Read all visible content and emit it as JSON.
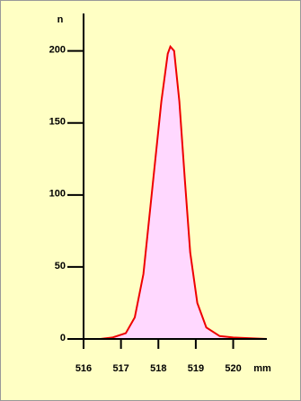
{
  "chart_data": {
    "type": "area",
    "y_label": "n",
    "x_label": "mm",
    "x": [
      516.45,
      516.77,
      517.13,
      517.37,
      517.6,
      517.84,
      518.08,
      518.25,
      518.32,
      518.42,
      518.56,
      518.71,
      518.85,
      519.04,
      519.28,
      519.64,
      520.0,
      520.89
    ],
    "values": [
      0,
      1,
      4,
      15,
      45,
      105,
      165,
      198,
      203,
      200,
      165,
      110,
      60,
      25,
      8,
      2,
      1,
      0
    ],
    "color": "#ee0000",
    "fill": "#ffd8ff",
    "xlim": [
      516,
      520.9
    ],
    "ylim": [
      0,
      226
    ],
    "xticks": [
      516,
      517,
      518,
      519,
      520
    ],
    "yticks": [
      0,
      50,
      100,
      150,
      200
    ]
  }
}
